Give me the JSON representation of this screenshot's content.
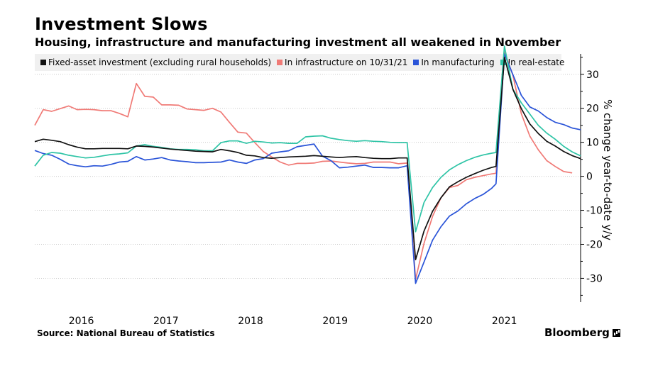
{
  "title": "Investment Slows",
  "subtitle": "Housing, infrastructure and manufacturing investment all weakened in November",
  "source": "Source: National Bureau of Statistics",
  "brand": "Bloomberg",
  "colors": {
    "fixed_asset": "#111111",
    "infrastructure": "#f07a76",
    "manufacturing": "#2a54d8",
    "real_estate": "#2ec4a6",
    "legend_bg": "#f0f0f0",
    "grid": "#cccccc"
  },
  "chart_data": {
    "type": "line",
    "ylabel": "% change year-to-date y/y",
    "ylim": [
      -37,
      36
    ],
    "xlim": [
      2015.6,
      2021.95
    ],
    "y_ticks": [
      30,
      20,
      10,
      0,
      -10,
      -20,
      -30
    ],
    "x_ticks": [
      {
        "label": "2016",
        "value": 2016.15
      },
      {
        "label": "2017",
        "value": 2017.15
      },
      {
        "label": "2018",
        "value": 2018.15
      },
      {
        "label": "2019",
        "value": 2019.15
      },
      {
        "label": "2020",
        "value": 2020.15
      },
      {
        "label": "2021",
        "value": 2021.15
      }
    ],
    "grid": true,
    "legend_position": "top",
    "series": [
      {
        "name": "Fixed-asset investment (excluding rural households)",
        "color_key": "fixed_asset",
        "points": [
          [
            2015.6,
            10.2
          ],
          [
            2015.7,
            10.9
          ],
          [
            2015.8,
            10.6
          ],
          [
            2015.9,
            10.2
          ],
          [
            2016.0,
            9.3
          ],
          [
            2016.1,
            8.6
          ],
          [
            2016.2,
            8.1
          ],
          [
            2016.3,
            8.1
          ],
          [
            2016.4,
            8.2
          ],
          [
            2016.5,
            8.2
          ],
          [
            2016.6,
            8.2
          ],
          [
            2016.7,
            8.1
          ],
          [
            2016.8,
            8.9
          ],
          [
            2016.9,
            8.8
          ],
          [
            2017.0,
            8.6
          ],
          [
            2017.1,
            8.3
          ],
          [
            2017.2,
            8.0
          ],
          [
            2017.3,
            7.8
          ],
          [
            2017.4,
            7.6
          ],
          [
            2017.5,
            7.4
          ],
          [
            2017.6,
            7.3
          ],
          [
            2017.7,
            7.2
          ],
          [
            2017.8,
            7.9
          ],
          [
            2017.9,
            7.5
          ],
          [
            2018.0,
            7.0
          ],
          [
            2018.1,
            6.2
          ],
          [
            2018.2,
            6.0
          ],
          [
            2018.3,
            5.5
          ],
          [
            2018.4,
            5.3
          ],
          [
            2018.5,
            5.5
          ],
          [
            2018.6,
            5.7
          ],
          [
            2018.7,
            5.8
          ],
          [
            2018.8,
            5.9
          ],
          [
            2018.9,
            6.1
          ],
          [
            2019.0,
            5.9
          ],
          [
            2019.1,
            5.7
          ],
          [
            2019.2,
            5.5
          ],
          [
            2019.3,
            5.7
          ],
          [
            2019.4,
            5.8
          ],
          [
            2019.5,
            5.5
          ],
          [
            2019.6,
            5.3
          ],
          [
            2019.7,
            5.2
          ],
          [
            2019.8,
            5.2
          ],
          [
            2019.9,
            5.4
          ],
          [
            2020.0,
            5.4
          ],
          [
            2020.1,
            -24.5
          ],
          [
            2020.2,
            -16.1
          ],
          [
            2020.3,
            -10.3
          ],
          [
            2020.4,
            -6.3
          ],
          [
            2020.5,
            -3.1
          ],
          [
            2020.6,
            -1.6
          ],
          [
            2020.7,
            -0.3
          ],
          [
            2020.8,
            0.8
          ],
          [
            2020.9,
            1.8
          ],
          [
            2021.0,
            2.6
          ],
          [
            2021.05,
            2.9
          ],
          [
            2021.15,
            35.0
          ],
          [
            2021.25,
            25.6
          ],
          [
            2021.35,
            19.9
          ],
          [
            2021.45,
            15.4
          ],
          [
            2021.55,
            12.6
          ],
          [
            2021.65,
            10.3
          ],
          [
            2021.75,
            8.9
          ],
          [
            2021.85,
            7.3
          ],
          [
            2021.95,
            6.1
          ],
          [
            2022.05,
            5.2
          ]
        ]
      },
      {
        "name": "In infrastructure on 10/31/21",
        "color_key": "infrastructure",
        "points": [
          [
            2015.6,
            15.0
          ],
          [
            2015.7,
            19.6
          ],
          [
            2015.8,
            19.1
          ],
          [
            2015.9,
            19.9
          ],
          [
            2016.0,
            20.7
          ],
          [
            2016.1,
            19.6
          ],
          [
            2016.2,
            19.7
          ],
          [
            2016.3,
            19.6
          ],
          [
            2016.4,
            19.3
          ],
          [
            2016.5,
            19.3
          ],
          [
            2016.6,
            18.5
          ],
          [
            2016.7,
            17.5
          ],
          [
            2016.8,
            27.3
          ],
          [
            2016.9,
            23.5
          ],
          [
            2017.0,
            23.3
          ],
          [
            2017.1,
            21.0
          ],
          [
            2017.2,
            21.0
          ],
          [
            2017.3,
            20.9
          ],
          [
            2017.4,
            19.8
          ],
          [
            2017.5,
            19.6
          ],
          [
            2017.6,
            19.4
          ],
          [
            2017.7,
            20.0
          ],
          [
            2017.8,
            18.9
          ],
          [
            2017.9,
            15.9
          ],
          [
            2018.0,
            13.0
          ],
          [
            2018.1,
            12.7
          ],
          [
            2018.2,
            9.9
          ],
          [
            2018.3,
            7.3
          ],
          [
            2018.4,
            5.7
          ],
          [
            2018.5,
            4.2
          ],
          [
            2018.6,
            3.3
          ],
          [
            2018.7,
            3.8
          ],
          [
            2018.8,
            3.8
          ],
          [
            2018.9,
            3.9
          ],
          [
            2019.0,
            4.4
          ],
          [
            2019.1,
            4.5
          ],
          [
            2019.2,
            4.2
          ],
          [
            2019.3,
            3.9
          ],
          [
            2019.4,
            3.7
          ],
          [
            2019.5,
            3.8
          ],
          [
            2019.6,
            4.2
          ],
          [
            2019.7,
            4.2
          ],
          [
            2019.8,
            4.2
          ],
          [
            2019.9,
            3.7
          ],
          [
            2020.0,
            3.9
          ],
          [
            2020.1,
            -30.3
          ],
          [
            2020.2,
            -19.7
          ],
          [
            2020.3,
            -11.8
          ],
          [
            2020.4,
            -6.3
          ],
          [
            2020.5,
            -3.3
          ],
          [
            2020.6,
            -2.7
          ],
          [
            2020.7,
            -1.0
          ],
          [
            2020.8,
            -0.3
          ],
          [
            2020.9,
            0.2
          ],
          [
            2021.0,
            0.7
          ],
          [
            2021.05,
            0.9
          ],
          [
            2021.15,
            36.6
          ],
          [
            2021.25,
            29.7
          ],
          [
            2021.35,
            18.4
          ],
          [
            2021.45,
            11.8
          ],
          [
            2021.55,
            7.8
          ],
          [
            2021.65,
            4.6
          ],
          [
            2021.75,
            2.9
          ],
          [
            2021.85,
            1.4
          ],
          [
            2021.95,
            1.0
          ]
        ]
      },
      {
        "name": "In manufacturing",
        "color_key": "manufacturing",
        "points": [
          [
            2015.6,
            7.6
          ],
          [
            2015.7,
            6.7
          ],
          [
            2015.8,
            6.2
          ],
          [
            2015.9,
            5.0
          ],
          [
            2016.0,
            3.6
          ],
          [
            2016.1,
            3.1
          ],
          [
            2016.2,
            2.8
          ],
          [
            2016.3,
            3.1
          ],
          [
            2016.4,
            3.0
          ],
          [
            2016.5,
            3.5
          ],
          [
            2016.6,
            4.2
          ],
          [
            2016.7,
            4.4
          ],
          [
            2016.8,
            5.8
          ],
          [
            2016.9,
            4.8
          ],
          [
            2017.0,
            5.1
          ],
          [
            2017.1,
            5.5
          ],
          [
            2017.2,
            4.8
          ],
          [
            2017.3,
            4.5
          ],
          [
            2017.4,
            4.3
          ],
          [
            2017.5,
            4.0
          ],
          [
            2017.6,
            4.0
          ],
          [
            2017.7,
            4.1
          ],
          [
            2017.8,
            4.2
          ],
          [
            2017.9,
            4.8
          ],
          [
            2018.0,
            4.2
          ],
          [
            2018.1,
            3.8
          ],
          [
            2018.2,
            4.8
          ],
          [
            2018.3,
            5.2
          ],
          [
            2018.4,
            6.8
          ],
          [
            2018.5,
            7.2
          ],
          [
            2018.6,
            7.5
          ],
          [
            2018.7,
            8.7
          ],
          [
            2018.8,
            9.1
          ],
          [
            2018.9,
            9.5
          ],
          [
            2019.0,
            5.9
          ],
          [
            2019.1,
            4.6
          ],
          [
            2019.2,
            2.5
          ],
          [
            2019.3,
            2.7
          ],
          [
            2019.4,
            3.0
          ],
          [
            2019.5,
            3.3
          ],
          [
            2019.6,
            2.6
          ],
          [
            2019.7,
            2.6
          ],
          [
            2019.8,
            2.5
          ],
          [
            2019.9,
            2.5
          ],
          [
            2020.0,
            3.1
          ],
          [
            2020.1,
            -31.5
          ],
          [
            2020.2,
            -25.2
          ],
          [
            2020.3,
            -18.8
          ],
          [
            2020.4,
            -14.8
          ],
          [
            2020.5,
            -11.7
          ],
          [
            2020.6,
            -10.2
          ],
          [
            2020.7,
            -8.1
          ],
          [
            2020.8,
            -6.5
          ],
          [
            2020.9,
            -5.3
          ],
          [
            2021.0,
            -3.5
          ],
          [
            2021.05,
            -2.2
          ],
          [
            2021.15,
            36.0
          ],
          [
            2021.25,
            29.9
          ],
          [
            2021.35,
            23.8
          ],
          [
            2021.45,
            20.4
          ],
          [
            2021.55,
            19.2
          ],
          [
            2021.65,
            17.3
          ],
          [
            2021.75,
            15.9
          ],
          [
            2021.85,
            15.2
          ],
          [
            2021.95,
            14.2
          ],
          [
            2022.05,
            13.7
          ]
        ]
      },
      {
        "name": "In real-estate",
        "color_key": "real_estate",
        "points": [
          [
            2015.6,
            3.0
          ],
          [
            2015.7,
            6.2
          ],
          [
            2015.8,
            7.0
          ],
          [
            2015.9,
            6.8
          ],
          [
            2016.0,
            6.2
          ],
          [
            2016.1,
            5.8
          ],
          [
            2016.2,
            5.4
          ],
          [
            2016.3,
            5.6
          ],
          [
            2016.4,
            6.0
          ],
          [
            2016.5,
            6.4
          ],
          [
            2016.6,
            6.6
          ],
          [
            2016.7,
            6.9
          ],
          [
            2016.8,
            8.9
          ],
          [
            2016.9,
            9.3
          ],
          [
            2017.0,
            8.8
          ],
          [
            2017.1,
            8.5
          ],
          [
            2017.2,
            8.1
          ],
          [
            2017.3,
            7.9
          ],
          [
            2017.4,
            7.9
          ],
          [
            2017.5,
            7.8
          ],
          [
            2017.6,
            7.5
          ],
          [
            2017.7,
            7.5
          ],
          [
            2017.8,
            9.9
          ],
          [
            2017.9,
            10.4
          ],
          [
            2018.0,
            10.4
          ],
          [
            2018.1,
            9.7
          ],
          [
            2018.2,
            10.3
          ],
          [
            2018.3,
            10.1
          ],
          [
            2018.4,
            9.8
          ],
          [
            2018.5,
            9.9
          ],
          [
            2018.6,
            9.7
          ],
          [
            2018.7,
            9.7
          ],
          [
            2018.8,
            11.6
          ],
          [
            2018.9,
            11.8
          ],
          [
            2019.0,
            11.9
          ],
          [
            2019.1,
            11.2
          ],
          [
            2019.2,
            10.8
          ],
          [
            2019.3,
            10.5
          ],
          [
            2019.4,
            10.3
          ],
          [
            2019.5,
            10.5
          ],
          [
            2019.6,
            10.3
          ],
          [
            2019.7,
            10.2
          ],
          [
            2019.8,
            10.0
          ],
          [
            2019.9,
            9.9
          ],
          [
            2020.0,
            9.9
          ],
          [
            2020.1,
            -16.3
          ],
          [
            2020.2,
            -7.7
          ],
          [
            2020.3,
            -3.3
          ],
          [
            2020.4,
            -0.3
          ],
          [
            2020.5,
            1.9
          ],
          [
            2020.6,
            3.4
          ],
          [
            2020.7,
            4.6
          ],
          [
            2020.8,
            5.6
          ],
          [
            2020.9,
            6.3
          ],
          [
            2021.0,
            6.8
          ],
          [
            2021.05,
            7.0
          ],
          [
            2021.15,
            38.3
          ],
          [
            2021.25,
            25.6
          ],
          [
            2021.35,
            21.6
          ],
          [
            2021.45,
            18.3
          ],
          [
            2021.55,
            15.0
          ],
          [
            2021.65,
            12.7
          ],
          [
            2021.75,
            10.9
          ],
          [
            2021.85,
            8.8
          ],
          [
            2021.95,
            7.2
          ],
          [
            2022.05,
            6.0
          ]
        ]
      }
    ]
  }
}
